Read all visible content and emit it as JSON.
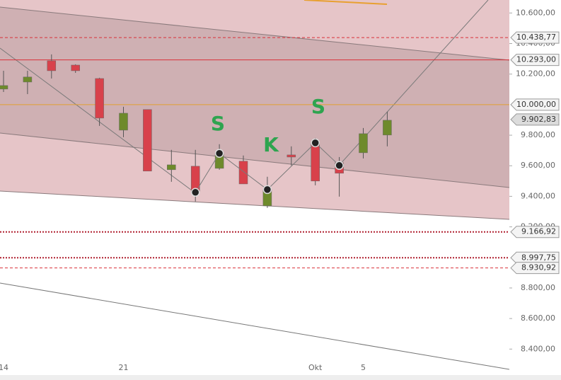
{
  "chart_data": {
    "type": "candlestick",
    "categories": [
      "14",
      null,
      null,
      null,
      null,
      "21",
      null,
      null,
      null,
      null,
      null,
      null,
      null,
      "Okt",
      null,
      "5",
      null
    ],
    "open": [
      10102,
      10148,
      10287,
      10259,
      10171,
      9833,
      9968,
      9574,
      9597,
      9583,
      9630,
      9338,
      9671,
      9750,
      9620,
      9685,
      9801
    ],
    "high": [
      10222,
      10222,
      10329,
      10264,
      10176,
      9986,
      9968,
      9704,
      9704,
      9741,
      9667,
      9528,
      9727,
      9782,
      9657,
      9847,
      9954
    ],
    "low": [
      10083,
      10069,
      10171,
      10208,
      9861,
      9787,
      9565,
      9495,
      9366,
      9574,
      9481,
      9324,
      9602,
      9472,
      9398,
      9648,
      9727
    ],
    "close": [
      10125,
      10181,
      10222,
      10222,
      9912,
      9944,
      9565,
      9606,
      9426,
      9681,
      9481,
      9444,
      9657,
      9500,
      9551,
      9810,
      9898
    ],
    "up_color": "#6e8a2b",
    "down_color": "#d8414b",
    "pivots": {
      "index": [
        8,
        9,
        11,
        13,
        14
      ],
      "values": [
        9426,
        9681,
        9444,
        9750,
        9602
      ]
    },
    "annotations": [
      "S",
      "K",
      "S"
    ],
    "levels": [
      {
        "value": 10438.77,
        "label": "10.438,77",
        "color": "#d9303a",
        "style": "dashed"
      },
      {
        "value": 10293,
        "label": "10.293,00",
        "color": "#d9303a",
        "style": "solid"
      },
      {
        "value": 10000,
        "label": "10.000,00",
        "color": "#e0a030",
        "style": "solid"
      },
      {
        "value": 9902.83,
        "label": "9.902,83",
        "color": "#c8c8c8",
        "style": "none"
      },
      {
        "value": 9166.92,
        "label": "9.166,92",
        "color": "#b02030",
        "style": "dotted"
      },
      {
        "value": 8997.75,
        "label": "8.997,75",
        "color": "#b02030",
        "style": "dotted"
      },
      {
        "value": 8930.92,
        "label": "8.930,92",
        "color": "#d9303a",
        "style": "dashed"
      }
    ],
    "ylim": [
      8230,
      10685
    ],
    "yticks": [
      {
        "value": 10600,
        "label": "10.600,00"
      },
      {
        "value": 10400,
        "label": "10.400,00"
      },
      {
        "value": 10200,
        "label": "10.200,00"
      },
      {
        "value": 9800,
        "label": "9.800,00"
      },
      {
        "value": 9600,
        "label": "9.600,00"
      },
      {
        "value": 9400,
        "label": "9.400,00"
      },
      {
        "value": 9200,
        "label": "9.200,00"
      },
      {
        "value": 8800,
        "label": "8.800,00"
      },
      {
        "value": 8600,
        "label": "8.600,00"
      },
      {
        "value": 8400,
        "label": "8.400,00"
      }
    ]
  }
}
